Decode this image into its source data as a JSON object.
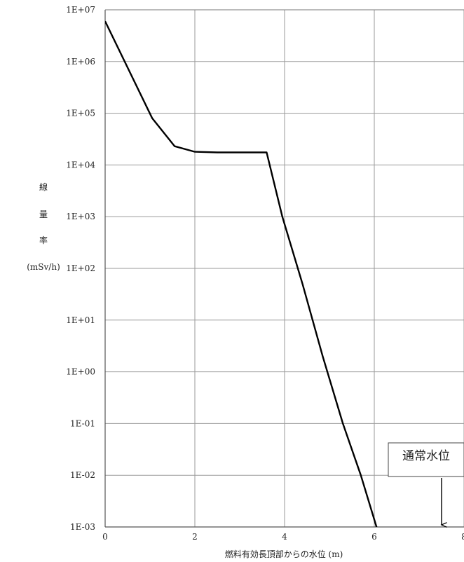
{
  "chart_data": {
    "type": "line",
    "title": "",
    "xlabel": "燃料有効長頂部からの水位 (m)",
    "ylabel_lines": [
      "線",
      "量",
      "率",
      "(mSv/h)"
    ],
    "xlim": [
      0,
      8
    ],
    "ylim": [
      0.001,
      10000000
    ],
    "yscale": "log",
    "grid": true,
    "x_ticks": [
      0,
      2,
      4,
      6,
      8
    ],
    "x_tick_labels": [
      "0",
      "2",
      "4",
      "6",
      "8"
    ],
    "y_ticks": [
      10000000,
      1000000,
      100000,
      10000,
      1000,
      100,
      10,
      1,
      0.1,
      0.01,
      0.001
    ],
    "y_tick_labels": [
      "1E+07",
      "1E+06",
      "1E+05",
      "1E+04",
      "1E+03",
      "1E+02",
      "1E+01",
      "1E+00",
      "1E-01",
      "1E-02",
      "1E-03"
    ],
    "series": [
      {
        "x": [
          0,
          1.05,
          1.55,
          2.0,
          2.5,
          3.0,
          3.6,
          3.95,
          4.4,
          4.85,
          5.3,
          5.7,
          6.05,
          6.4
        ],
        "y": [
          6000000,
          80000,
          23000,
          18000,
          17500,
          17500,
          17500,
          1000,
          50,
          2,
          0.1,
          0.01,
          0.001,
          0.0001
        ],
        "color": "#000000"
      }
    ],
    "annotation": {
      "text": "通常水位",
      "x": 7.5,
      "y": 0.001
    }
  }
}
